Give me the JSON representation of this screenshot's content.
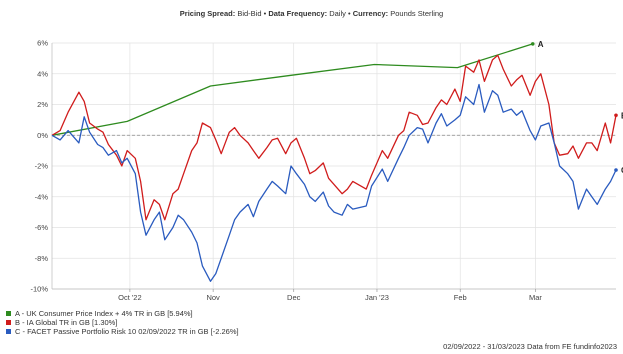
{
  "header": {
    "items": [
      {
        "label": "Pricing Spread:",
        "value": "Bid-Bid"
      },
      {
        "label": "Data Frequency:",
        "value": "Daily"
      },
      {
        "label": "Currency:",
        "value": "Pounds Sterling"
      }
    ],
    "separator": "•"
  },
  "footer": {
    "date_range": "02/09/2022 - 31/03/2023",
    "source": "Data from FE fundinfo2023"
  },
  "chart_data": {
    "type": "line",
    "title": "",
    "xlabel": "",
    "ylabel": "",
    "ylim": [
      -10,
      6
    ],
    "yticks": [
      6,
      4,
      2,
      0,
      -2,
      -4,
      -6,
      -8,
      -10
    ],
    "ytick_labels": [
      "6%",
      "4%",
      "2%",
      "0%",
      "-2%",
      "-4%",
      "-6%",
      "-8%",
      "-10%"
    ],
    "xlim": [
      "2022-09-02",
      "2023-03-31"
    ],
    "xticks": [
      {
        "date": "2022-10-01",
        "label": "Oct '22"
      },
      {
        "date": "2022-11-01",
        "label": "Nov"
      },
      {
        "date": "2022-12-01",
        "label": "Dec"
      },
      {
        "date": "2023-01-01",
        "label": "Jan '23"
      },
      {
        "date": "2023-02-01",
        "label": "Feb"
      },
      {
        "date": "2023-03-01",
        "label": "Mar"
      }
    ],
    "grid": true,
    "legend_position": "bottom-left",
    "series": [
      {
        "name": "A - UK Consumer Price Index + 4% TR in GB [5.94%]",
        "end_label": "A",
        "color": "#2e8b1f",
        "x": [
          "2022-09-02",
          "2022-09-30",
          "2022-10-31",
          "2022-11-30",
          "2022-12-31",
          "2023-01-31",
          "2023-02-28"
        ],
        "y": [
          0.0,
          0.9,
          3.2,
          3.9,
          4.6,
          4.4,
          5.94
        ]
      },
      {
        "name": "B - IA Global TR in GB [1.30%]",
        "end_label": "B",
        "color": "#d01c1c",
        "x": [
          "2022-09-02",
          "2022-09-05",
          "2022-09-08",
          "2022-09-12",
          "2022-09-14",
          "2022-09-16",
          "2022-09-19",
          "2022-09-21",
          "2022-09-23",
          "2022-09-26",
          "2022-09-28",
          "2022-09-30",
          "2022-10-03",
          "2022-10-05",
          "2022-10-07",
          "2022-10-10",
          "2022-10-12",
          "2022-10-14",
          "2022-10-17",
          "2022-10-19",
          "2022-10-21",
          "2022-10-24",
          "2022-10-26",
          "2022-10-28",
          "2022-10-31",
          "2022-11-02",
          "2022-11-04",
          "2022-11-07",
          "2022-11-09",
          "2022-11-11",
          "2022-11-14",
          "2022-11-16",
          "2022-11-18",
          "2022-11-21",
          "2022-11-23",
          "2022-11-25",
          "2022-11-28",
          "2022-11-30",
          "2022-12-02",
          "2022-12-05",
          "2022-12-07",
          "2022-12-09",
          "2022-12-12",
          "2022-12-14",
          "2022-12-16",
          "2022-12-19",
          "2022-12-21",
          "2022-12-23",
          "2022-12-28",
          "2022-12-30",
          "2023-01-03",
          "2023-01-05",
          "2023-01-09",
          "2023-01-11",
          "2023-01-13",
          "2023-01-16",
          "2023-01-18",
          "2023-01-20",
          "2023-01-23",
          "2023-01-25",
          "2023-01-27",
          "2023-01-30",
          "2023-02-01",
          "2023-02-03",
          "2023-02-06",
          "2023-02-08",
          "2023-02-10",
          "2023-02-13",
          "2023-02-15",
          "2023-02-17",
          "2023-02-20",
          "2023-02-22",
          "2023-02-24",
          "2023-02-27",
          "2023-03-01",
          "2023-03-03",
          "2023-03-06",
          "2023-03-08",
          "2023-03-10",
          "2023-03-13",
          "2023-03-15",
          "2023-03-17",
          "2023-03-20",
          "2023-03-22",
          "2023-03-24",
          "2023-03-27",
          "2023-03-29",
          "2023-03-31"
        ],
        "y": [
          0.0,
          0.3,
          1.5,
          2.8,
          2.2,
          0.8,
          0.4,
          0.2,
          -0.6,
          -1.3,
          -2.0,
          -1.0,
          -1.5,
          -3.0,
          -5.5,
          -4.2,
          -4.5,
          -5.5,
          -3.8,
          -3.5,
          -2.5,
          -1.0,
          -0.5,
          0.8,
          0.5,
          -0.3,
          -1.2,
          0.2,
          0.5,
          0.0,
          -0.5,
          -1.0,
          -1.5,
          -0.8,
          -0.3,
          -0.2,
          -1.2,
          -0.5,
          -0.2,
          -1.5,
          -2.5,
          -2.3,
          -1.8,
          -2.8,
          -3.2,
          -3.8,
          -3.5,
          -3.0,
          -3.5,
          -2.6,
          -1.0,
          -1.5,
          0.0,
          0.3,
          1.5,
          1.3,
          0.7,
          0.8,
          1.8,
          2.3,
          2.0,
          3.0,
          2.2,
          4.5,
          4.1,
          4.9,
          3.5,
          4.9,
          5.2,
          4.3,
          3.2,
          3.6,
          3.9,
          2.6,
          3.5,
          4.0,
          2.0,
          -0.5,
          -1.3,
          -1.2,
          -0.7,
          -1.5,
          -0.5,
          -0.5,
          -1.0,
          0.8,
          -0.5,
          1.3
        ]
      },
      {
        "name": "C - FACET Passive Portfolio Risk 10 02/09/2022 TR in GB [-2.26%]",
        "end_label": "C",
        "color": "#2a5bbf",
        "x": [
          "2022-09-02",
          "2022-09-05",
          "2022-09-08",
          "2022-09-12",
          "2022-09-14",
          "2022-09-16",
          "2022-09-19",
          "2022-09-21",
          "2022-09-23",
          "2022-09-26",
          "2022-09-28",
          "2022-09-30",
          "2022-10-03",
          "2022-10-05",
          "2022-10-07",
          "2022-10-10",
          "2022-10-12",
          "2022-10-14",
          "2022-10-17",
          "2022-10-19",
          "2022-10-21",
          "2022-10-24",
          "2022-10-26",
          "2022-10-28",
          "2022-10-31",
          "2022-11-02",
          "2022-11-04",
          "2022-11-07",
          "2022-11-09",
          "2022-11-11",
          "2022-11-14",
          "2022-11-16",
          "2022-11-18",
          "2022-11-21",
          "2022-11-23",
          "2022-11-25",
          "2022-11-28",
          "2022-11-30",
          "2022-12-02",
          "2022-12-05",
          "2022-12-07",
          "2022-12-09",
          "2022-12-12",
          "2022-12-14",
          "2022-12-16",
          "2022-12-19",
          "2022-12-21",
          "2022-12-23",
          "2022-12-28",
          "2022-12-30",
          "2023-01-03",
          "2023-01-05",
          "2023-01-09",
          "2023-01-11",
          "2023-01-13",
          "2023-01-16",
          "2023-01-18",
          "2023-01-20",
          "2023-01-23",
          "2023-01-25",
          "2023-01-27",
          "2023-01-30",
          "2023-02-01",
          "2023-02-03",
          "2023-02-06",
          "2023-02-08",
          "2023-02-10",
          "2023-02-13",
          "2023-02-15",
          "2023-02-17",
          "2023-02-20",
          "2023-02-22",
          "2023-02-24",
          "2023-02-27",
          "2023-03-01",
          "2023-03-03",
          "2023-03-06",
          "2023-03-08",
          "2023-03-10",
          "2023-03-13",
          "2023-03-15",
          "2023-03-17",
          "2023-03-20",
          "2023-03-22",
          "2023-03-24",
          "2023-03-27",
          "2023-03-29",
          "2023-03-31"
        ],
        "y": [
          0.0,
          -0.3,
          0.3,
          -0.5,
          1.2,
          0.2,
          -0.6,
          -0.8,
          -1.3,
          -1.0,
          -1.8,
          -1.5,
          -2.5,
          -5.0,
          -6.5,
          -5.5,
          -5.0,
          -6.8,
          -6.0,
          -5.2,
          -5.5,
          -6.3,
          -7.0,
          -8.5,
          -9.5,
          -9.0,
          -8.0,
          -6.5,
          -5.5,
          -5.0,
          -4.5,
          -5.3,
          -4.3,
          -3.5,
          -3.0,
          -3.3,
          -3.8,
          -2.0,
          -2.5,
          -3.2,
          -4.0,
          -4.3,
          -3.7,
          -4.6,
          -5.0,
          -5.2,
          -4.5,
          -4.8,
          -4.6,
          -3.3,
          -2.2,
          -3.0,
          -1.5,
          -0.8,
          0.0,
          0.5,
          0.4,
          -0.5,
          0.8,
          1.4,
          0.6,
          1.0,
          1.3,
          2.5,
          2.0,
          3.3,
          1.5,
          2.9,
          2.6,
          1.5,
          1.7,
          1.3,
          1.6,
          0.3,
          -0.3,
          0.6,
          0.8,
          -0.5,
          -2.0,
          -2.5,
          -3.0,
          -4.8,
          -3.5,
          -4.0,
          -4.5,
          -3.5,
          -3.0,
          -2.26
        ]
      }
    ]
  }
}
